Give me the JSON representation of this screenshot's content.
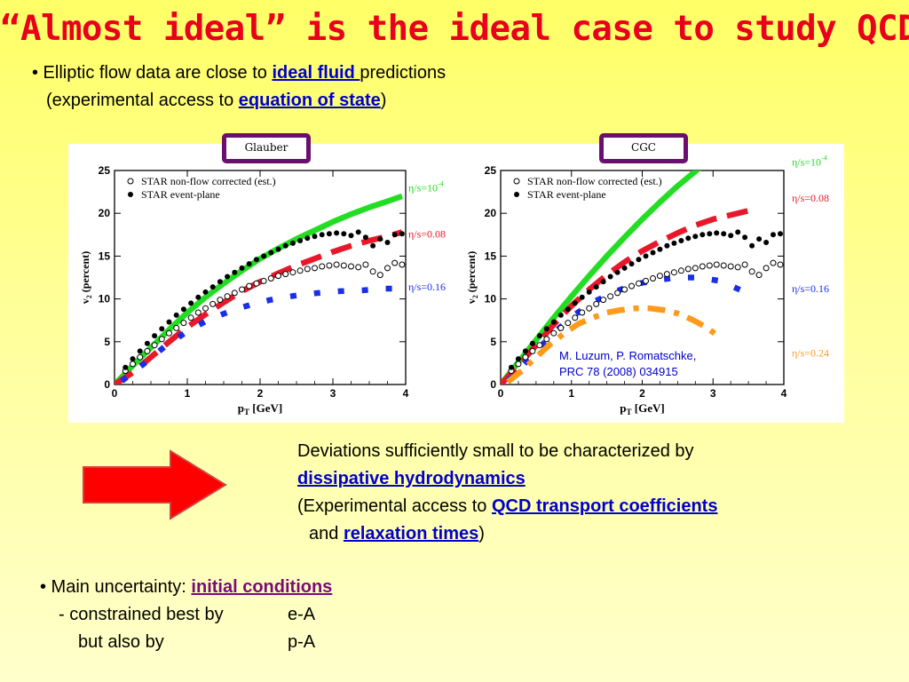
{
  "slide": {
    "title": "“Almost ideal” is the ideal case to study QCD",
    "bullet1": {
      "prefix": "• Elliptic flow data are close to ",
      "link": "ideal fluid ",
      "suffix": "predictions",
      "line2_prefix": "(experimental access to ",
      "line2_link": "equation of state",
      "line2_suffix": ")"
    },
    "deviations": {
      "line1": "Deviations sufficiently small to be characterized by",
      "link1": "dissipative hydrodynamics",
      "line3_prefix": "(Experimental access to ",
      "link2": "QCD transport coefficients",
      "line4_prefix": "and ",
      "link3": "relaxation times",
      "line4_suffix": ")"
    },
    "bullet2": {
      "prefix": "• Main uncertainty: ",
      "link": "initial conditions",
      "line2_a": "- constrained best by",
      "line2_b": "e-A",
      "line3_a": "but also by",
      "line3_b": "p-A"
    },
    "citation": {
      "line1": "M. Luzum, P. Romatschke,",
      "line2": "PRC 78 (2008) 034915"
    },
    "colors": {
      "title": "#e8001c",
      "link_blue": "#0000cc",
      "link_purple": "#7a0a7a",
      "arrow_fill": "#ff0000",
      "tag_border": "#6a0f6f"
    }
  },
  "chart_data": [
    {
      "type": "scatter",
      "panel_tag": "Glauber",
      "xlabel_main": "p",
      "xlabel_sub": "T",
      "xlabel_unit": " [GeV]",
      "ylabel_main": "v",
      "ylabel_sub": "2",
      "ylabel_unit": " (percent)",
      "xlim": [
        0,
        4
      ],
      "ylim": [
        0,
        25
      ],
      "xticks": [
        "0",
        "1",
        "2",
        "3",
        "4"
      ],
      "yticks": [
        "0",
        "5",
        "10",
        "15",
        "20",
        "25"
      ],
      "legend": [
        {
          "label": "STAR non-flow corrected (est.)",
          "marker": "open-circle"
        },
        {
          "label": "STAR event-plane",
          "marker": "filled-circle"
        }
      ],
      "markers": [
        {
          "name": "STAR non-flow corrected (est.)",
          "marker": "open",
          "x": [
            0.15,
            0.25,
            0.35,
            0.45,
            0.55,
            0.65,
            0.75,
            0.85,
            0.95,
            1.05,
            1.15,
            1.25,
            1.35,
            1.45,
            1.55,
            1.65,
            1.75,
            1.85,
            1.95,
            2.05,
            2.15,
            2.25,
            2.35,
            2.45,
            2.55,
            2.65,
            2.75,
            2.85,
            2.95,
            3.05,
            3.15,
            3.25,
            3.35,
            3.45,
            3.55,
            3.65,
            3.75,
            3.85,
            3.95
          ],
          "y": [
            1.6,
            2.4,
            3.2,
            3.9,
            4.6,
            5.3,
            6.0,
            6.6,
            7.2,
            7.8,
            8.4,
            8.9,
            9.4,
            9.9,
            10.3,
            10.7,
            11.1,
            11.5,
            11.8,
            12.1,
            12.4,
            12.7,
            12.9,
            13.1,
            13.3,
            13.5,
            13.6,
            13.8,
            13.9,
            14.0,
            13.9,
            13.8,
            13.7,
            14.0,
            13.2,
            12.8,
            13.6,
            14.2,
            14.0
          ]
        },
        {
          "name": "STAR event-plane",
          "marker": "filled",
          "x": [
            0.15,
            0.25,
            0.35,
            0.45,
            0.55,
            0.65,
            0.75,
            0.85,
            0.95,
            1.05,
            1.15,
            1.25,
            1.35,
            1.45,
            1.55,
            1.65,
            1.75,
            1.85,
            1.95,
            2.05,
            2.15,
            2.25,
            2.35,
            2.45,
            2.55,
            2.65,
            2.75,
            2.85,
            2.95,
            3.05,
            3.15,
            3.25,
            3.35,
            3.45,
            3.55,
            3.65,
            3.75,
            3.85,
            3.95
          ],
          "y": [
            2.0,
            3.0,
            3.9,
            4.8,
            5.7,
            6.5,
            7.3,
            8.1,
            8.8,
            9.5,
            10.2,
            10.8,
            11.4,
            12.0,
            12.6,
            13.1,
            13.6,
            14.1,
            14.6,
            15.0,
            15.4,
            15.8,
            16.2,
            16.5,
            16.8,
            17.1,
            17.3,
            17.5,
            17.6,
            17.7,
            17.6,
            17.4,
            17.8,
            17.2,
            16.2,
            17.0,
            16.6,
            17.5,
            17.6
          ]
        }
      ],
      "curves": [
        {
          "label": "η/s=10",
          "label_sup": "-4",
          "style": "solid",
          "color": "#22dd22",
          "x": [
            0,
            0.25,
            0.5,
            0.75,
            1,
            1.25,
            1.5,
            1.75,
            2,
            2.25,
            2.5,
            2.75,
            3,
            3.25,
            3.5,
            3.75,
            3.95
          ],
          "y": [
            0,
            2.2,
            4.3,
            6.4,
            8.4,
            10.2,
            11.8,
            13.3,
            14.7,
            15.9,
            17.0,
            18.0,
            19.0,
            19.9,
            20.7,
            21.4,
            22.0
          ]
        },
        {
          "label": "η/s=0.08",
          "label_sup": "",
          "style": "dash",
          "color": "#e8182a",
          "x": [
            0,
            0.25,
            0.5,
            0.75,
            1,
            1.25,
            1.5,
            1.75,
            2,
            2.25,
            2.5,
            2.75,
            3,
            3.25,
            3.5,
            3.75,
            3.95
          ],
          "y": [
            0,
            1.4,
            3.2,
            5.0,
            6.7,
            8.2,
            9.6,
            10.9,
            12.0,
            13.0,
            13.9,
            14.7,
            15.5,
            16.2,
            16.8,
            17.3,
            17.8
          ]
        },
        {
          "label": "η/s=0.16",
          "label_sup": "",
          "style": "dot",
          "color": "#1a2ee8",
          "x": [
            0.1,
            0.4,
            0.7,
            1.0,
            1.3,
            1.6,
            1.9,
            2.2,
            2.5,
            2.8,
            3.1,
            3.4,
            3.7,
            3.95
          ],
          "y": [
            0.4,
            2.4,
            4.5,
            6.2,
            7.6,
            8.6,
            9.4,
            10.0,
            10.4,
            10.7,
            10.9,
            11.0,
            11.2,
            11.2
          ]
        }
      ]
    },
    {
      "type": "scatter",
      "panel_tag": "CGC",
      "xlabel_main": "p",
      "xlabel_sub": "T",
      "xlabel_unit": " [GeV]",
      "ylabel_main": "v",
      "ylabel_sub": "2",
      "ylabel_unit": " (percent)",
      "xlim": [
        0,
        4
      ],
      "ylim": [
        0,
        25
      ],
      "xticks": [
        "0",
        "1",
        "2",
        "3",
        "4"
      ],
      "yticks": [
        "0",
        "5",
        "10",
        "15",
        "20",
        "25"
      ],
      "legend": [
        {
          "label": "STAR non-flow corrected (est.)",
          "marker": "open-circle"
        },
        {
          "label": "STAR event-plane",
          "marker": "filled-circle"
        }
      ],
      "markers": [
        {
          "name": "STAR non-flow corrected (est.)",
          "marker": "open",
          "x": [
            0.15,
            0.25,
            0.35,
            0.45,
            0.55,
            0.65,
            0.75,
            0.85,
            0.95,
            1.05,
            1.15,
            1.25,
            1.35,
            1.45,
            1.55,
            1.65,
            1.75,
            1.85,
            1.95,
            2.05,
            2.15,
            2.25,
            2.35,
            2.45,
            2.55,
            2.65,
            2.75,
            2.85,
            2.95,
            3.05,
            3.15,
            3.25,
            3.35,
            3.45,
            3.55,
            3.65,
            3.75,
            3.85,
            3.95
          ],
          "y": [
            1.6,
            2.4,
            3.2,
            3.9,
            4.6,
            5.3,
            6.0,
            6.6,
            7.2,
            7.8,
            8.4,
            8.9,
            9.4,
            9.9,
            10.3,
            10.7,
            11.1,
            11.5,
            11.8,
            12.1,
            12.4,
            12.7,
            12.9,
            13.1,
            13.3,
            13.5,
            13.6,
            13.8,
            13.9,
            14.0,
            13.9,
            13.8,
            13.7,
            14.0,
            13.2,
            12.8,
            13.6,
            14.2,
            14.0
          ]
        },
        {
          "name": "STAR event-plane",
          "marker": "filled",
          "x": [
            0.15,
            0.25,
            0.35,
            0.45,
            0.55,
            0.65,
            0.75,
            0.85,
            0.95,
            1.05,
            1.15,
            1.25,
            1.35,
            1.45,
            1.55,
            1.65,
            1.75,
            1.85,
            1.95,
            2.05,
            2.15,
            2.25,
            2.35,
            2.45,
            2.55,
            2.65,
            2.75,
            2.85,
            2.95,
            3.05,
            3.15,
            3.25,
            3.35,
            3.45,
            3.55,
            3.65,
            3.75,
            3.85,
            3.95
          ],
          "y": [
            2.0,
            3.0,
            3.9,
            4.8,
            5.7,
            6.5,
            7.3,
            8.1,
            8.8,
            9.5,
            10.2,
            10.8,
            11.4,
            12.0,
            12.6,
            13.1,
            13.6,
            14.1,
            14.6,
            15.0,
            15.4,
            15.8,
            16.2,
            16.5,
            16.8,
            17.1,
            17.3,
            17.5,
            17.6,
            17.7,
            17.6,
            17.4,
            17.8,
            17.2,
            16.2,
            17.0,
            16.6,
            17.5,
            17.6
          ]
        }
      ],
      "curves": [
        {
          "label": "η/s=10",
          "label_sup": "-4",
          "style": "solid",
          "color": "#22dd22",
          "x": [
            0,
            0.25,
            0.5,
            0.75,
            1,
            1.25,
            1.5,
            1.75,
            2,
            2.25,
            2.5,
            2.75,
            2.9
          ],
          "y": [
            0,
            2.6,
            5.2,
            7.8,
            10.3,
            12.7,
            15.0,
            17.2,
            19.3,
            21.3,
            23.2,
            24.9,
            25.9
          ]
        },
        {
          "label": "η/s=0.08",
          "label_sup": "",
          "style": "dash",
          "color": "#e8182a",
          "x": [
            0,
            0.25,
            0.5,
            0.75,
            1,
            1.25,
            1.5,
            1.75,
            2,
            2.25,
            2.5,
            2.75,
            3,
            3.25,
            3.5
          ],
          "y": [
            0,
            2.2,
            4.6,
            7.0,
            9.2,
            11.1,
            12.8,
            14.3,
            15.6,
            16.7,
            17.7,
            18.6,
            19.3,
            19.8,
            20.3
          ]
        },
        {
          "label": "η/s=0.16",
          "label_sup": "",
          "style": "dot",
          "color": "#1a2ee8",
          "x": [
            0.1,
            0.4,
            0.7,
            1.0,
            1.3,
            1.6,
            1.9,
            2.2,
            2.5,
            2.8,
            3.1,
            3.4
          ],
          "y": [
            0.4,
            3.0,
            5.6,
            7.9,
            9.6,
            10.8,
            11.7,
            12.2,
            12.5,
            12.5,
            12.1,
            11.0
          ]
        },
        {
          "label": "η/s=0.24",
          "label_sup": "",
          "style": "dashdot",
          "color": "#ff9a1a",
          "x": [
            0.1,
            0.3,
            0.5,
            0.7,
            0.9,
            1.1,
            1.3,
            1.5,
            1.7,
            1.9,
            2.1,
            2.3,
            2.5,
            2.7,
            2.9,
            3.1
          ],
          "y": [
            0.3,
            1.6,
            3.2,
            4.7,
            6.0,
            7.1,
            7.8,
            8.4,
            8.7,
            8.9,
            8.9,
            8.7,
            8.3,
            7.6,
            6.7,
            5.5
          ]
        }
      ]
    }
  ]
}
